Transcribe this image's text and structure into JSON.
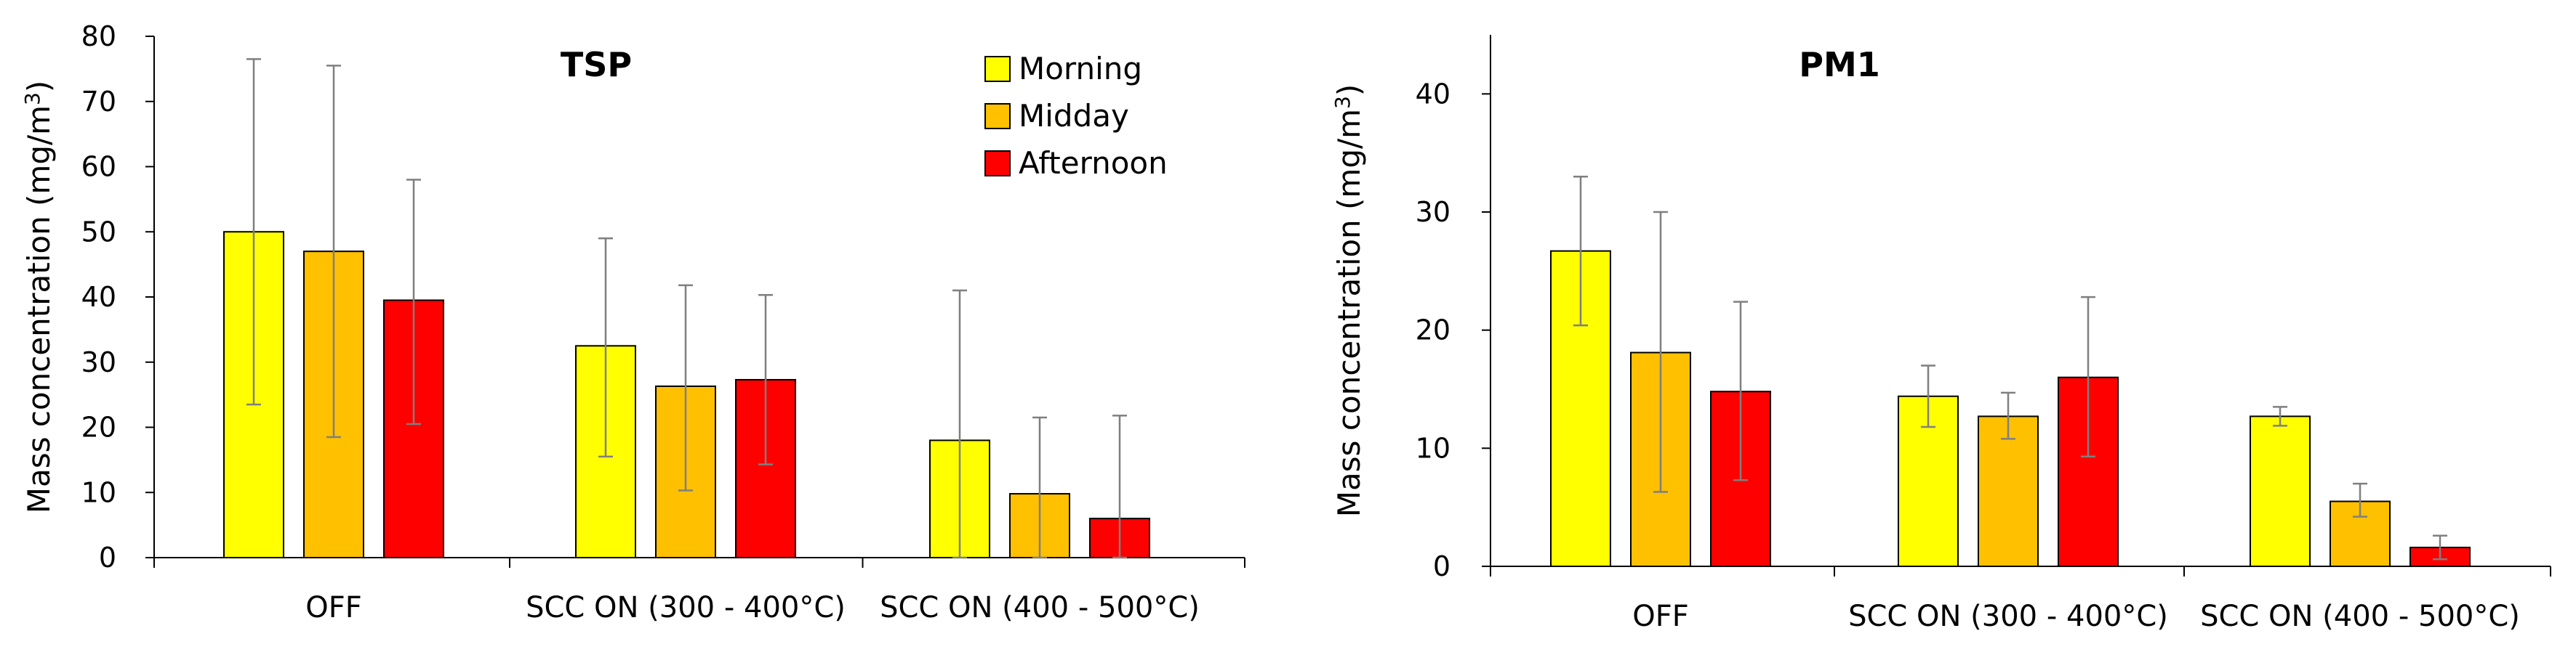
{
  "chart_data": [
    {
      "type": "bar",
      "title": "TSP",
      "ylabel": "Mass concentration (mg/m",
      "ylabel_unit_sup": "3",
      "ylabel_close": ")",
      "xlabel": "",
      "ylim": [
        0,
        80
      ],
      "yticks": [
        0,
        10,
        20,
        30,
        40,
        50,
        60,
        70,
        80
      ],
      "categories": [
        "OFF",
        "SCC ON (300 - 400°C)",
        "SCC ON (400 - 500°C)"
      ],
      "series": [
        {
          "name": "Morning",
          "color": "#FFFF00",
          "values": [
            50,
            32.5,
            18
          ],
          "err_low": [
            23.5,
            15.5,
            0
          ],
          "err_high": [
            76.5,
            49,
            41
          ]
        },
        {
          "name": "Midday",
          "color": "#FFC000",
          "values": [
            47,
            26.3,
            9.8
          ],
          "err_low": [
            18.5,
            10.3,
            0
          ],
          "err_high": [
            75.5,
            41.8,
            21.5
          ]
        },
        {
          "name": "Afternoon",
          "color": "#FF0000",
          "values": [
            39.5,
            27.3,
            6
          ],
          "err_low": [
            20.5,
            14.3,
            0
          ],
          "err_high": [
            58,
            40.3,
            21.8
          ]
        }
      ],
      "legend": "top-right"
    },
    {
      "type": "bar",
      "title": "PM1",
      "ylabel": "Mass concentration (mg/m",
      "ylabel_unit_sup": "3",
      "ylabel_close": ")",
      "xlabel": "",
      "ylim": [
        0,
        45
      ],
      "yticks": [
        0,
        10,
        20,
        30,
        40
      ],
      "categories": [
        "OFF",
        "SCC ON (300 - 400°C)",
        "SCC ON (400 - 500°C)"
      ],
      "series": [
        {
          "name": "Morning",
          "color": "#FFFF00",
          "values": [
            26.7,
            14.4,
            12.7
          ],
          "err_low": [
            20.4,
            11.8,
            11.9
          ],
          "err_high": [
            33,
            17,
            13.5
          ]
        },
        {
          "name": "Midday",
          "color": "#FFC000",
          "values": [
            18.1,
            12.7,
            5.5
          ],
          "err_low": [
            6.3,
            10.8,
            4.2
          ],
          "err_high": [
            30,
            14.7,
            7
          ]
        },
        {
          "name": "Afternoon",
          "color": "#FF0000",
          "values": [
            14.8,
            16,
            1.6
          ],
          "err_low": [
            7.3,
            9.3,
            0.6
          ],
          "err_high": [
            22.4,
            22.8,
            2.6
          ]
        }
      ],
      "legend": "none"
    }
  ]
}
